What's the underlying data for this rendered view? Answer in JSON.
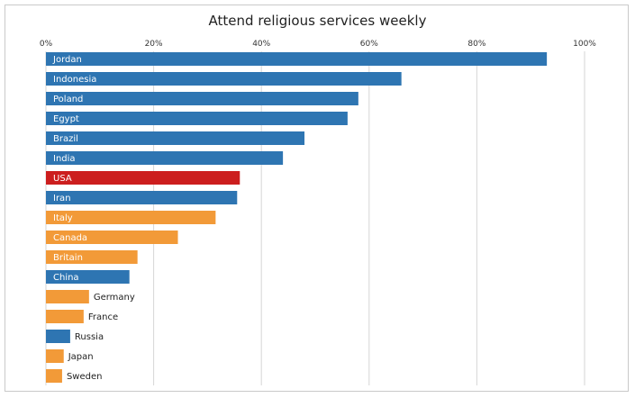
{
  "chart_data": {
    "type": "bar",
    "orientation": "horizontal",
    "title": "Attend religious services weekly",
    "x_ticks": [
      "0%",
      "20%",
      "40%",
      "60%",
      "80%",
      "100%"
    ],
    "xlim": [
      0,
      100
    ],
    "grid": true,
    "colors": {
      "default": "#2E75B2",
      "highlight": "#CC1E1E",
      "group2": "#F29A38"
    },
    "categories": [
      "Jordan",
      "Indonesia",
      "Poland",
      "Egypt",
      "Brazil",
      "India",
      "USA",
      "Iran",
      "Italy",
      "Canada",
      "Britain",
      "China",
      "Germany",
      "France",
      "Russia",
      "Japan",
      "Sweden"
    ],
    "values": [
      93,
      66,
      58,
      56,
      48,
      44,
      36,
      35.5,
      31.5,
      24.5,
      17,
      15.5,
      8,
      7,
      4.5,
      3.3,
      3
    ],
    "bar_colors": [
      "#2E75B2",
      "#2E75B2",
      "#2E75B2",
      "#2E75B2",
      "#2E75B2",
      "#2E75B2",
      "#CC1E1E",
      "#2E75B2",
      "#F29A38",
      "#F29A38",
      "#F29A38",
      "#2E75B2",
      "#F29A38",
      "#F29A38",
      "#2E75B2",
      "#F29A38",
      "#F29A38"
    ]
  }
}
